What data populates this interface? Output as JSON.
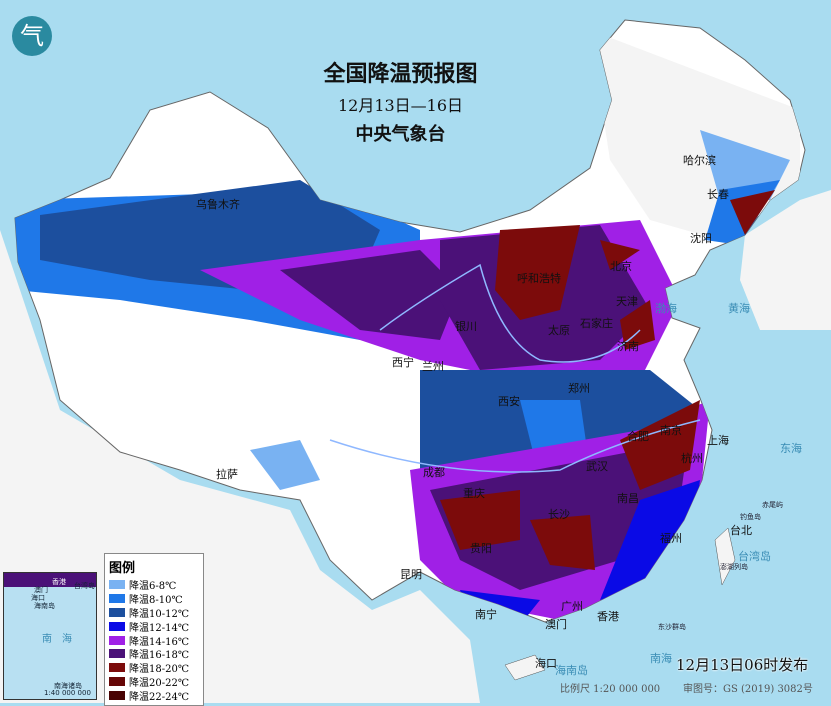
{
  "title": "全国降温预报图",
  "date_range": "12月13日—16日",
  "issuer": "中央气象台",
  "logo_glyph": "气",
  "legend": {
    "title": "图例",
    "items": [
      {
        "label": "降温6-8℃",
        "color": "#79b2f2"
      },
      {
        "label": "降温8-10℃",
        "color": "#1f78e8"
      },
      {
        "label": "降温10-12℃",
        "color": "#1c4f9e"
      },
      {
        "label": "降温12-14℃",
        "color": "#0a0ae6"
      },
      {
        "label": "降温14-16℃",
        "color": "#a020e6"
      },
      {
        "label": "降温16-18℃",
        "color": "#4b1178"
      },
      {
        "label": "降温18-20℃",
        "color": "#7c0b0b"
      },
      {
        "label": "降温20-22℃",
        "color": "#660606"
      },
      {
        "label": "降温22-24℃",
        "color": "#480202"
      }
    ]
  },
  "cities": [
    "乌鲁木齐",
    "哈尔滨",
    "长春",
    "沈阳",
    "北京",
    "天津",
    "呼和浩特",
    "银川",
    "西宁",
    "兰州",
    "太原",
    "石家庄",
    "济南",
    "郑州",
    "西安",
    "合肥",
    "南京",
    "上海",
    "杭州",
    "武汉",
    "长沙",
    "南昌",
    "福州",
    "台北",
    "成都",
    "重庆",
    "贵阳",
    "昆明",
    "南宁",
    "广州",
    "香港",
    "澳门",
    "海口",
    "拉萨"
  ],
  "seas": [
    "渤海",
    "黄海",
    "东海",
    "南海",
    "台湾岛",
    "海南岛"
  ],
  "small_labels": [
    "钓鱼岛",
    "赤尾屿",
    "澎湖列岛",
    "东沙群岛"
  ],
  "inset": {
    "labels": [
      "澳门",
      "香港",
      "台湾岛",
      "海口",
      "海南岛",
      "南",
      "海",
      "南海诸岛"
    ],
    "scale": "1:40 000 000"
  },
  "published": "12月13日06时发布",
  "scale": "比例尺 1:20 000 000",
  "map_number": "审图号：GS (2019) 3082号"
}
